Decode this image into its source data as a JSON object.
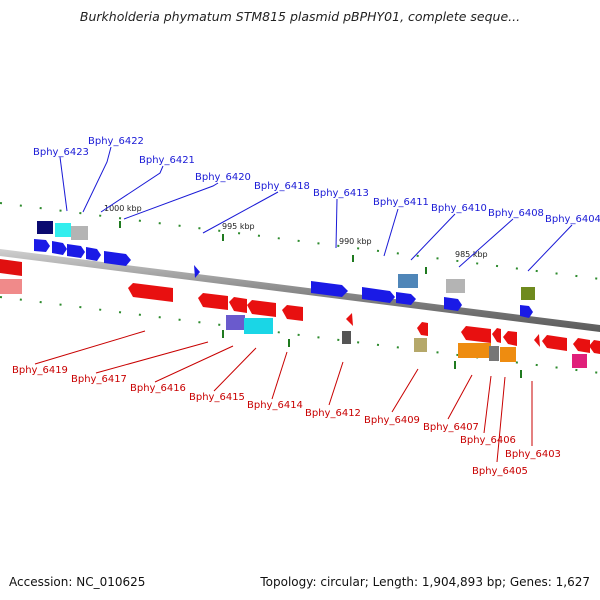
{
  "title": "Burkholderia phymatum STM815 plasmid pBPHY01, complete seque...",
  "footer": {
    "accession": "Accession: NC_010625",
    "topology": "Topology: circular; Length: 1,904,893 bp; Genes: 1,627"
  },
  "scale_labels": [
    "1000 kbp",
    "995 kbp",
    "990 kbp",
    "985 kbp"
  ],
  "colors": {
    "forward_label": "#1a1ad6",
    "reverse_label": "#c80000",
    "forward_gene": "#1010e8",
    "reverse_gene": "#e81010",
    "tick": "#1f7a1f",
    "backbone": "#8c8c8c"
  },
  "forward_labels": [
    "Bphy_6423",
    "Bphy_6422",
    "Bphy_6421",
    "Bphy_6420",
    "Bphy_6418",
    "Bphy_6413",
    "Bphy_6411",
    "Bphy_6410",
    "Bphy_6408",
    "Bphy_6404"
  ],
  "reverse_labels": [
    "Bphy_6419",
    "Bphy_6417",
    "Bphy_6416",
    "Bphy_6415",
    "Bphy_6414",
    "Bphy_6412",
    "Bphy_6409",
    "Bphy_6407",
    "Bphy_6406",
    "Bphy_6405",
    "Bphy_6403"
  ]
}
